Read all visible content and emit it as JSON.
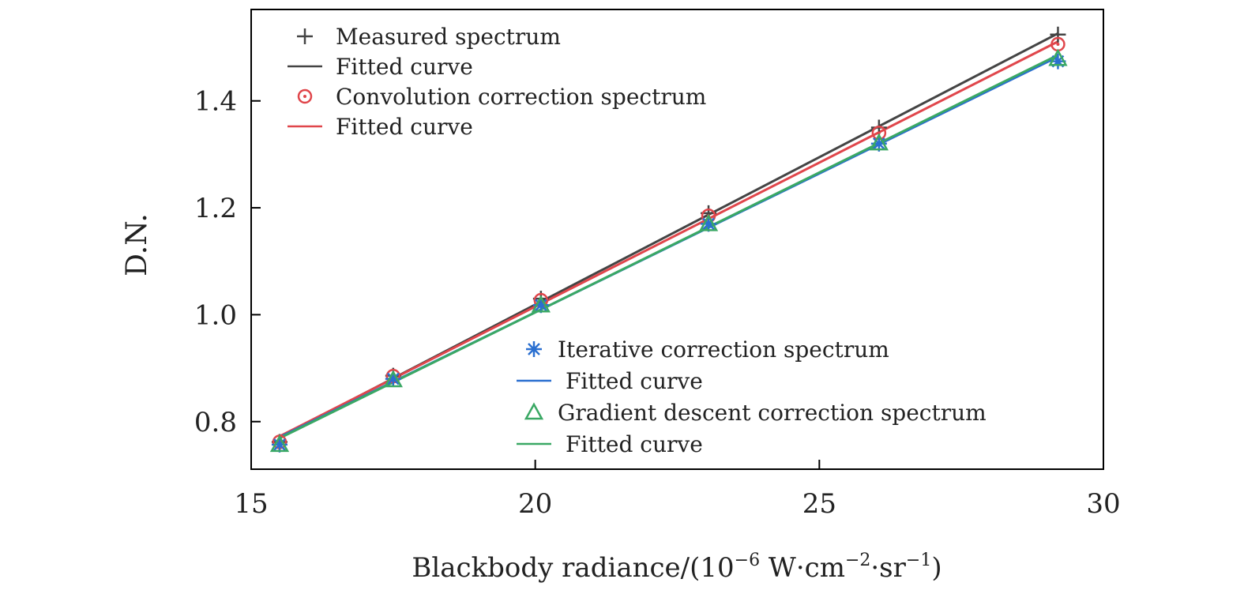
{
  "chart_data": {
    "type": "line",
    "xlabel": "Blackbody radiance/(10",
    "xlabel_exp1": "−6",
    "xlabel_unit1": " W·cm",
    "xlabel_exp2": "−2",
    "xlabel_unit2": "·sr",
    "xlabel_exp3": "−1",
    "xlabel_end": ")",
    "ylabel": "D.N.",
    "xlim": [
      15,
      30
    ],
    "ylim": [
      0.711,
      1.571
    ],
    "xticks": [
      15,
      20,
      25,
      30
    ],
    "xtick_labels": [
      "15",
      "20",
      "25",
      "30"
    ],
    "yticks": [
      0.8,
      1.0,
      1.2,
      1.4
    ],
    "ytick_labels": [
      "0.8",
      "1.0",
      "1.2",
      "1.4"
    ],
    "x": [
      15.5,
      17.5,
      20.1,
      23.05,
      26.05,
      29.2
    ],
    "series": [
      {
        "name": "Measured spectrum",
        "fit_name": "Fitted curve",
        "marker": "plus",
        "color": "#444444",
        "values": [
          0.762,
          0.886,
          1.03,
          1.19,
          1.35,
          1.524
        ]
      },
      {
        "name": "Convolution correction spectrum",
        "fit_name": "Fitted curve",
        "marker": "circle",
        "color": "#e0464b",
        "values": [
          0.762,
          0.885,
          1.027,
          1.185,
          1.34,
          1.506
        ]
      },
      {
        "name": "Iterative correction spectrum",
        "fit_name": "Fitted curve",
        "marker": "asterisk",
        "color": "#2a6fd0",
        "values": [
          0.757,
          0.88,
          1.018,
          1.17,
          1.32,
          1.474
        ]
      },
      {
        "name": "Gradient descent correction spectrum",
        "fit_name": "Fitted curve",
        "marker": "triangle",
        "color": "#3aa864",
        "values": [
          0.757,
          0.878,
          1.018,
          1.17,
          1.321,
          1.479
        ]
      }
    ],
    "legends": [
      "top-left",
      "bottom-center"
    ]
  }
}
